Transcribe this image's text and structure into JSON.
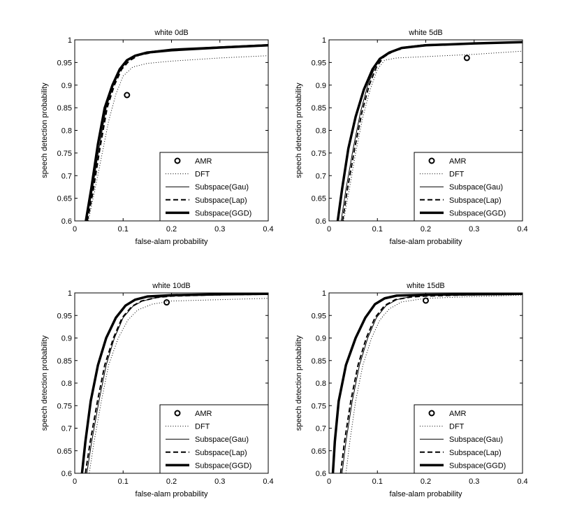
{
  "chart_data": [
    {
      "type": "line",
      "title": "white 0dB",
      "xlabel": "false-alam probability",
      "ylabel": "speech detection probability",
      "xlim": [
        0,
        0.4
      ],
      "ylim": [
        0.6,
        1
      ],
      "xticks": [
        "0",
        "0.1",
        "0.2",
        "0.3",
        "0.4"
      ],
      "yticks": [
        "0.6",
        "0.65",
        "0.7",
        "0.75",
        "0.8",
        "0.85",
        "0.9",
        "0.95",
        "1"
      ],
      "legend_position": "bottom-right",
      "markers": [
        {
          "name": "AMR",
          "x": 0.108,
          "y": 0.878
        }
      ],
      "series": [
        {
          "name": "DFT",
          "style": "dotted",
          "points": [
            [
              0.028,
              0.6
            ],
            [
              0.04,
              0.66
            ],
            [
              0.055,
              0.74
            ],
            [
              0.07,
              0.82
            ],
            [
              0.085,
              0.88
            ],
            [
              0.1,
              0.92
            ],
            [
              0.12,
              0.94
            ],
            [
              0.15,
              0.948
            ],
            [
              0.2,
              0.953
            ],
            [
              0.3,
              0.96
            ],
            [
              0.4,
              0.965
            ]
          ]
        },
        {
          "name": "Subspace(Gau)",
          "style": "thin",
          "points": [
            [
              0.024,
              0.6
            ],
            [
              0.035,
              0.66
            ],
            [
              0.05,
              0.76
            ],
            [
              0.065,
              0.85
            ],
            [
              0.08,
              0.9
            ],
            [
              0.095,
              0.935
            ],
            [
              0.11,
              0.955
            ],
            [
              0.13,
              0.968
            ],
            [
              0.16,
              0.975
            ],
            [
              0.2,
              0.98
            ],
            [
              0.3,
              0.985
            ],
            [
              0.4,
              0.99
            ]
          ]
        },
        {
          "name": "Subspace(Lap)",
          "style": "dashed",
          "points": [
            [
              0.026,
              0.6
            ],
            [
              0.037,
              0.66
            ],
            [
              0.052,
              0.76
            ],
            [
              0.067,
              0.85
            ],
            [
              0.082,
              0.9
            ],
            [
              0.097,
              0.935
            ],
            [
              0.112,
              0.953
            ],
            [
              0.132,
              0.966
            ],
            [
              0.16,
              0.972
            ],
            [
              0.2,
              0.977
            ],
            [
              0.3,
              0.983
            ],
            [
              0.4,
              0.988
            ]
          ]
        },
        {
          "name": "Subspace(GGD)",
          "style": "thick",
          "points": [
            [
              0.023,
              0.6
            ],
            [
              0.034,
              0.67
            ],
            [
              0.048,
              0.77
            ],
            [
              0.062,
              0.85
            ],
            [
              0.078,
              0.9
            ],
            [
              0.093,
              0.935
            ],
            [
              0.108,
              0.955
            ],
            [
              0.125,
              0.965
            ],
            [
              0.15,
              0.972
            ],
            [
              0.2,
              0.977
            ],
            [
              0.3,
              0.983
            ],
            [
              0.4,
              0.988
            ]
          ]
        }
      ]
    },
    {
      "type": "line",
      "title": "white 5dB",
      "xlabel": "false-alam probability",
      "ylabel": "speech detection probability",
      "xlim": [
        0,
        0.4
      ],
      "ylim": [
        0.6,
        1
      ],
      "xticks": [
        "0",
        "0.1",
        "0.2",
        "0.3",
        "0.4"
      ],
      "yticks": [
        "0.6",
        "0.65",
        "0.7",
        "0.75",
        "0.8",
        "0.85",
        "0.9",
        "0.95",
        "1"
      ],
      "legend_position": "bottom-right",
      "markers": [
        {
          "name": "AMR",
          "x": 0.285,
          "y": 0.96
        }
      ],
      "series": [
        {
          "name": "DFT",
          "style": "dotted",
          "points": [
            [
              0.03,
              0.6
            ],
            [
              0.042,
              0.67
            ],
            [
              0.055,
              0.75
            ],
            [
              0.07,
              0.83
            ],
            [
              0.085,
              0.89
            ],
            [
              0.1,
              0.935
            ],
            [
              0.115,
              0.955
            ],
            [
              0.14,
              0.96
            ],
            [
              0.2,
              0.963
            ],
            [
              0.3,
              0.968
            ],
            [
              0.4,
              0.975
            ]
          ]
        },
        {
          "name": "Subspace(Gau)",
          "style": "thin",
          "points": [
            [
              0.025,
              0.6
            ],
            [
              0.035,
              0.67
            ],
            [
              0.05,
              0.76
            ],
            [
              0.065,
              0.84
            ],
            [
              0.08,
              0.9
            ],
            [
              0.095,
              0.94
            ],
            [
              0.11,
              0.962
            ],
            [
              0.13,
              0.975
            ],
            [
              0.16,
              0.985
            ],
            [
              0.2,
              0.99
            ],
            [
              0.3,
              0.993
            ],
            [
              0.4,
              0.996
            ]
          ]
        },
        {
          "name": "Subspace(Lap)",
          "style": "dashed",
          "points": [
            [
              0.028,
              0.6
            ],
            [
              0.038,
              0.67
            ],
            [
              0.053,
              0.76
            ],
            [
              0.068,
              0.84
            ],
            [
              0.083,
              0.9
            ],
            [
              0.098,
              0.94
            ],
            [
              0.113,
              0.962
            ],
            [
              0.133,
              0.975
            ],
            [
              0.16,
              0.983
            ],
            [
              0.2,
              0.988
            ],
            [
              0.3,
              0.992
            ],
            [
              0.4,
              0.995
            ]
          ]
        },
        {
          "name": "Subspace(GGD)",
          "style": "thick",
          "points": [
            [
              0.018,
              0.6
            ],
            [
              0.027,
              0.67
            ],
            [
              0.04,
              0.76
            ],
            [
              0.055,
              0.83
            ],
            [
              0.072,
              0.89
            ],
            [
              0.09,
              0.935
            ],
            [
              0.105,
              0.958
            ],
            [
              0.125,
              0.972
            ],
            [
              0.15,
              0.982
            ],
            [
              0.2,
              0.988
            ],
            [
              0.3,
              0.992
            ],
            [
              0.4,
              0.995
            ]
          ]
        }
      ]
    },
    {
      "type": "line",
      "title": "white 10dB",
      "xlabel": "false-alam probability",
      "ylabel": "speech detection probability",
      "xlim": [
        0,
        0.4
      ],
      "ylim": [
        0.6,
        1
      ],
      "xticks": [
        "0",
        "0.1",
        "0.2",
        "0.3",
        "0.4"
      ],
      "yticks": [
        "0.6",
        "0.65",
        "0.7",
        "0.75",
        "0.8",
        "0.85",
        "0.9",
        "0.95",
        "1"
      ],
      "legend_position": "bottom-right",
      "markers": [
        {
          "name": "AMR",
          "x": 0.19,
          "y": 0.979
        }
      ],
      "series": [
        {
          "name": "DFT",
          "style": "dotted",
          "points": [
            [
              0.03,
              0.6
            ],
            [
              0.04,
              0.67
            ],
            [
              0.055,
              0.76
            ],
            [
              0.07,
              0.84
            ],
            [
              0.09,
              0.9
            ],
            [
              0.11,
              0.94
            ],
            [
              0.13,
              0.962
            ],
            [
              0.16,
              0.975
            ],
            [
              0.2,
              0.982
            ],
            [
              0.3,
              0.985
            ],
            [
              0.4,
              0.988
            ]
          ]
        },
        {
          "name": "Subspace(Gau)",
          "style": "thin",
          "points": [
            [
              0.025,
              0.6
            ],
            [
              0.035,
              0.67
            ],
            [
              0.05,
              0.76
            ],
            [
              0.065,
              0.84
            ],
            [
              0.082,
              0.9
            ],
            [
              0.1,
              0.945
            ],
            [
              0.12,
              0.97
            ],
            [
              0.14,
              0.982
            ],
            [
              0.17,
              0.99
            ],
            [
              0.2,
              0.993
            ],
            [
              0.3,
              0.996
            ],
            [
              0.4,
              0.997
            ]
          ]
        },
        {
          "name": "Subspace(Lap)",
          "style": "dashed",
          "points": [
            [
              0.022,
              0.6
            ],
            [
              0.032,
              0.67
            ],
            [
              0.047,
              0.76
            ],
            [
              0.062,
              0.84
            ],
            [
              0.08,
              0.9
            ],
            [
              0.098,
              0.945
            ],
            [
              0.118,
              0.97
            ],
            [
              0.138,
              0.982
            ],
            [
              0.17,
              0.99
            ],
            [
              0.2,
              0.993
            ],
            [
              0.3,
              0.996
            ],
            [
              0.4,
              0.997
            ]
          ]
        },
        {
          "name": "Subspace(GGD)",
          "style": "thick",
          "points": [
            [
              0.015,
              0.6
            ],
            [
              0.022,
              0.67
            ],
            [
              0.033,
              0.76
            ],
            [
              0.048,
              0.84
            ],
            [
              0.065,
              0.9
            ],
            [
              0.085,
              0.945
            ],
            [
              0.105,
              0.972
            ],
            [
              0.125,
              0.985
            ],
            [
              0.15,
              0.992
            ],
            [
              0.2,
              0.995
            ],
            [
              0.3,
              0.997
            ],
            [
              0.4,
              0.998
            ]
          ]
        }
      ]
    },
    {
      "type": "line",
      "title": "white 15dB",
      "xlabel": "false-alam probability",
      "ylabel": "speech detection probability",
      "xlim": [
        0,
        0.4
      ],
      "ylim": [
        0.6,
        1
      ],
      "xticks": [
        "0",
        "0.1",
        "0.2",
        "0.3",
        "0.4"
      ],
      "yticks": [
        "0.6",
        "0.65",
        "0.7",
        "0.75",
        "0.8",
        "0.85",
        "0.9",
        "0.95",
        "1"
      ],
      "legend_position": "bottom-right",
      "markers": [
        {
          "name": "AMR",
          "x": 0.2,
          "y": 0.983
        }
      ],
      "series": [
        {
          "name": "DFT",
          "style": "dotted",
          "points": [
            [
              0.035,
              0.6
            ],
            [
              0.043,
              0.67
            ],
            [
              0.055,
              0.76
            ],
            [
              0.07,
              0.84
            ],
            [
              0.088,
              0.9
            ],
            [
              0.105,
              0.94
            ],
            [
              0.125,
              0.965
            ],
            [
              0.15,
              0.98
            ],
            [
              0.2,
              0.988
            ],
            [
              0.3,
              0.992
            ],
            [
              0.4,
              0.995
            ]
          ]
        },
        {
          "name": "Subspace(Gau)",
          "style": "thin",
          "points": [
            [
              0.027,
              0.6
            ],
            [
              0.035,
              0.67
            ],
            [
              0.048,
              0.76
            ],
            [
              0.063,
              0.84
            ],
            [
              0.08,
              0.9
            ],
            [
              0.098,
              0.945
            ],
            [
              0.118,
              0.972
            ],
            [
              0.14,
              0.985
            ],
            [
              0.17,
              0.992
            ],
            [
              0.2,
              0.994
            ],
            [
              0.3,
              0.996
            ],
            [
              0.4,
              0.997
            ]
          ]
        },
        {
          "name": "Subspace(Lap)",
          "style": "dashed",
          "points": [
            [
              0.024,
              0.6
            ],
            [
              0.032,
              0.67
            ],
            [
              0.045,
              0.76
            ],
            [
              0.06,
              0.84
            ],
            [
              0.077,
              0.9
            ],
            [
              0.095,
              0.945
            ],
            [
              0.115,
              0.972
            ],
            [
              0.137,
              0.985
            ],
            [
              0.17,
              0.991
            ],
            [
              0.2,
              0.993
            ],
            [
              0.3,
              0.996
            ],
            [
              0.4,
              0.997
            ]
          ]
        },
        {
          "name": "Subspace(GGD)",
          "style": "thick",
          "points": [
            [
              0.008,
              0.6
            ],
            [
              0.012,
              0.67
            ],
            [
              0.02,
              0.76
            ],
            [
              0.035,
              0.84
            ],
            [
              0.055,
              0.9
            ],
            [
              0.075,
              0.945
            ],
            [
              0.095,
              0.975
            ],
            [
              0.115,
              0.988
            ],
            [
              0.14,
              0.994
            ],
            [
              0.2,
              0.996
            ],
            [
              0.3,
              0.997
            ],
            [
              0.4,
              0.998
            ]
          ]
        }
      ]
    }
  ]
}
